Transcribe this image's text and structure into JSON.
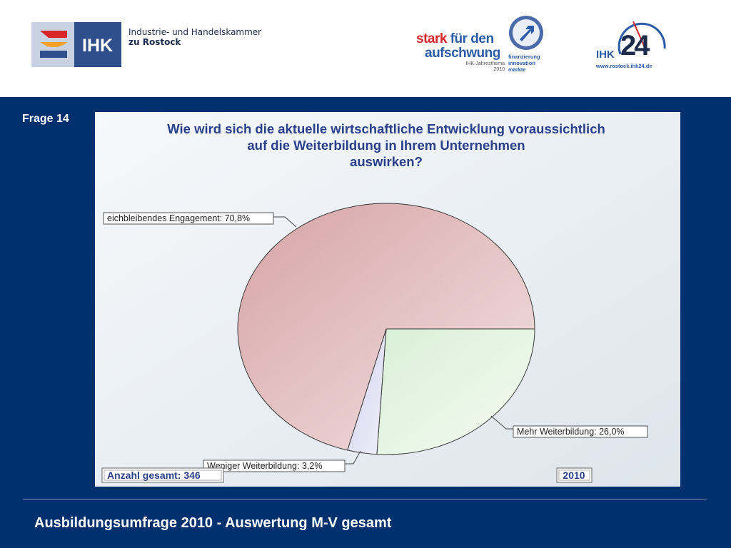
{
  "header": {
    "ihk_logo_text": "IHK",
    "org_line1": "Industrie- und Handelskammer",
    "org_line2": "zu Rostock",
    "campaign_word1": "stark",
    "campaign_word2": "für den",
    "campaign_word3": "aufschwung",
    "campaign_meta1": "IHK-Jahresthema",
    "campaign_meta2": "2010",
    "campaign_tag1": "finanzierung",
    "campaign_tag2": "innovation",
    "campaign_tag3": "märkte",
    "ihk24_label": "IHK",
    "ihk24_number": "24",
    "ihk24_url": "www.rostock.ihk24.de"
  },
  "slide": {
    "question_number": "Frage 14",
    "footer": "Ausbildungsumfrage 2010 - Auswertung M-V gesamt"
  },
  "chart_data": {
    "type": "pie",
    "title_lines": [
      "Wie wird sich die aktuelle wirtschaftliche Entwicklung voraussichtlich",
      "auf die Weiterbildung in Ihrem Unternehmen",
      "auswirken?"
    ],
    "slices": [
      {
        "label": "Mehr Weiterbildung: 26,0%",
        "value": 26.0,
        "color": "#e6f4e4"
      },
      {
        "label": "Weniger Weiterbildung: 3,2%",
        "value": 3.2,
        "color": "#e0e0f2"
      },
      {
        "label": "eichbleibendes Engagement: 70,8%",
        "value": 70.8,
        "color": "#e2b9bb"
      }
    ],
    "total_label": "Anzahl gesamt: 346",
    "year_label": "2010"
  },
  "colors": {
    "slide_background": "#00306e",
    "title_color": "#2a3f8a"
  }
}
